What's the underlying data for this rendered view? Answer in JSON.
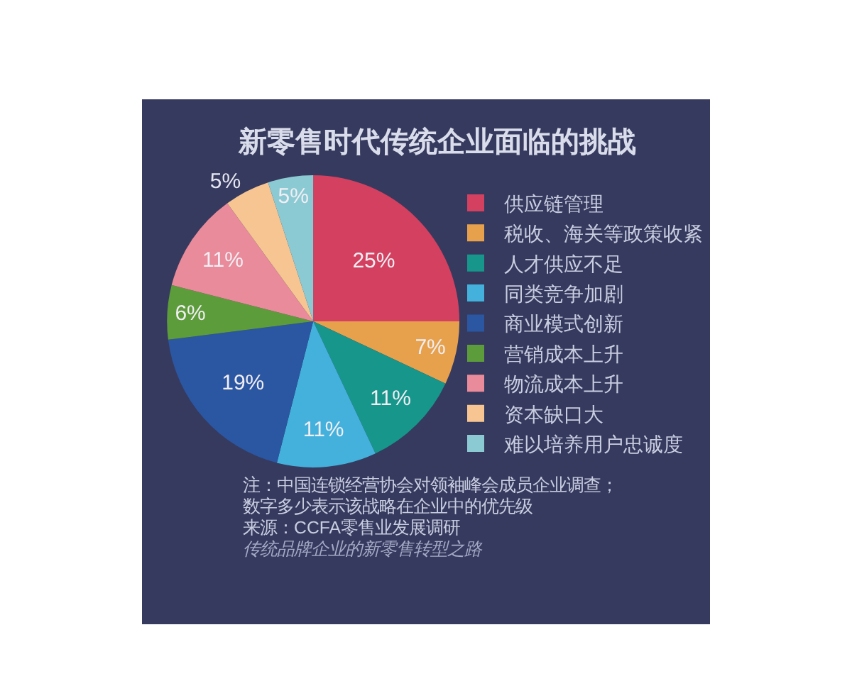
{
  "chart_data": {
    "type": "pie",
    "title": "新零售时代传统企业面临的挑战",
    "categories": [
      "供应链管理",
      "税收、海关等政策收紧",
      "人才供应不足",
      "同类竞争加剧",
      "商业模式创新",
      "营销成本上升",
      "物流成本上升",
      "资本缺口大",
      "难以培养用户忠诚度"
    ],
    "values": [
      25,
      7,
      11,
      11,
      19,
      6,
      11,
      5,
      5
    ],
    "value_labels": [
      "25%",
      "7%",
      "11%",
      "11%",
      "19%",
      "6%",
      "11%",
      "5%",
      "5%"
    ],
    "colors": [
      "#d4405f",
      "#e7a14c",
      "#17968b",
      "#43b1dc",
      "#2b56a1",
      "#5d9c3b",
      "#e98b9a",
      "#f6c592",
      "#8ccad3"
    ],
    "legend": "right",
    "annotations": [
      "注：中国连锁经营协会对领袖峰会成员企业调查；",
      "数字多少表示该战略在企业中的优先级",
      "来源：CCFA零售业发展调研",
      "传统品牌企业的新零售转型之路"
    ]
  }
}
